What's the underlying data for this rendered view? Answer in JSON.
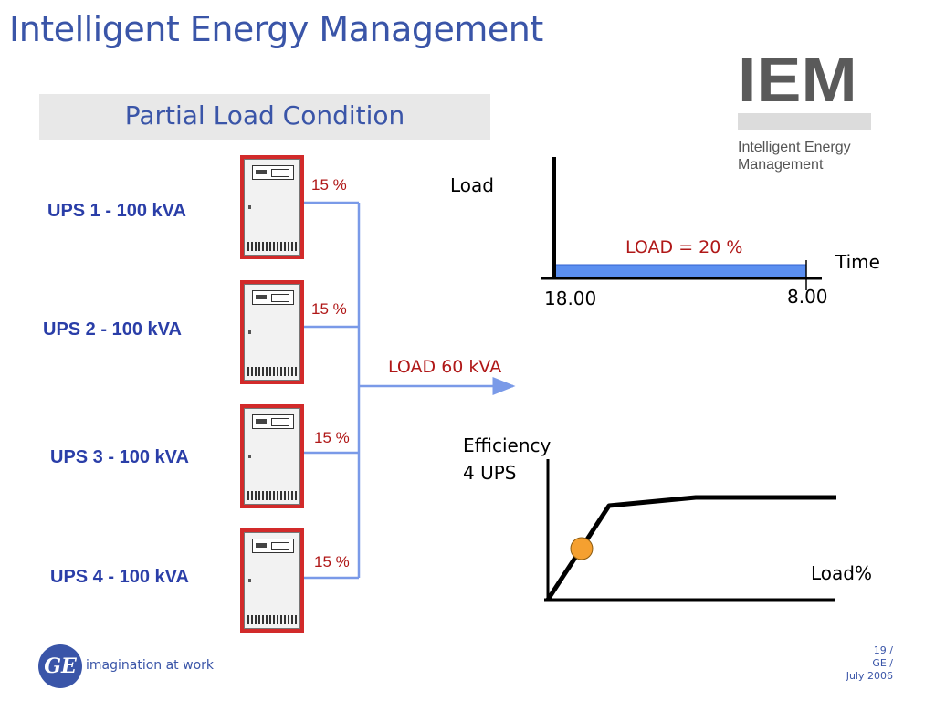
{
  "slide": {
    "title": "Intelligent Energy Management",
    "subtitle": "Partial Load Condition"
  },
  "logo": {
    "letters": "IEM",
    "line1": "Intelligent Energy",
    "line2": "Management"
  },
  "ups_units": [
    {
      "label": "UPS 1 - 100 kVA",
      "percent": "15 %"
    },
    {
      "label": "UPS 2 - 100 kVA",
      "percent": "15 %"
    },
    {
      "label": "UPS 3 - 100 kVA",
      "percent": "15 %"
    },
    {
      "label": "UPS 4 - 100 kVA",
      "percent": "15 %"
    }
  ],
  "total_load": "LOAD 60 kVA",
  "load_chart": {
    "y_label": "Load",
    "x_label": "Time",
    "bar_label": "LOAD = 20 %",
    "start_time": "18.00",
    "end_time": "8.00"
  },
  "efficiency_chart": {
    "y_label_line1": "Efficiency",
    "y_label_line2": "4 UPS",
    "x_label": "Load%"
  },
  "footer": {
    "ge_mark": "GE",
    "tagline": "imagination at work",
    "page": "19 /",
    "company": "GE /",
    "date": "July 2006"
  },
  "colors": {
    "title_blue": "#3a55a8",
    "ups_label_blue": "#2a3ea8",
    "percent_red": "#b01818",
    "cabinet_red": "#d22a2a",
    "connector_blue": "#7a9ae8",
    "load_bar_fill": "#5b8ff0",
    "operating_point": "#f5a030"
  }
}
